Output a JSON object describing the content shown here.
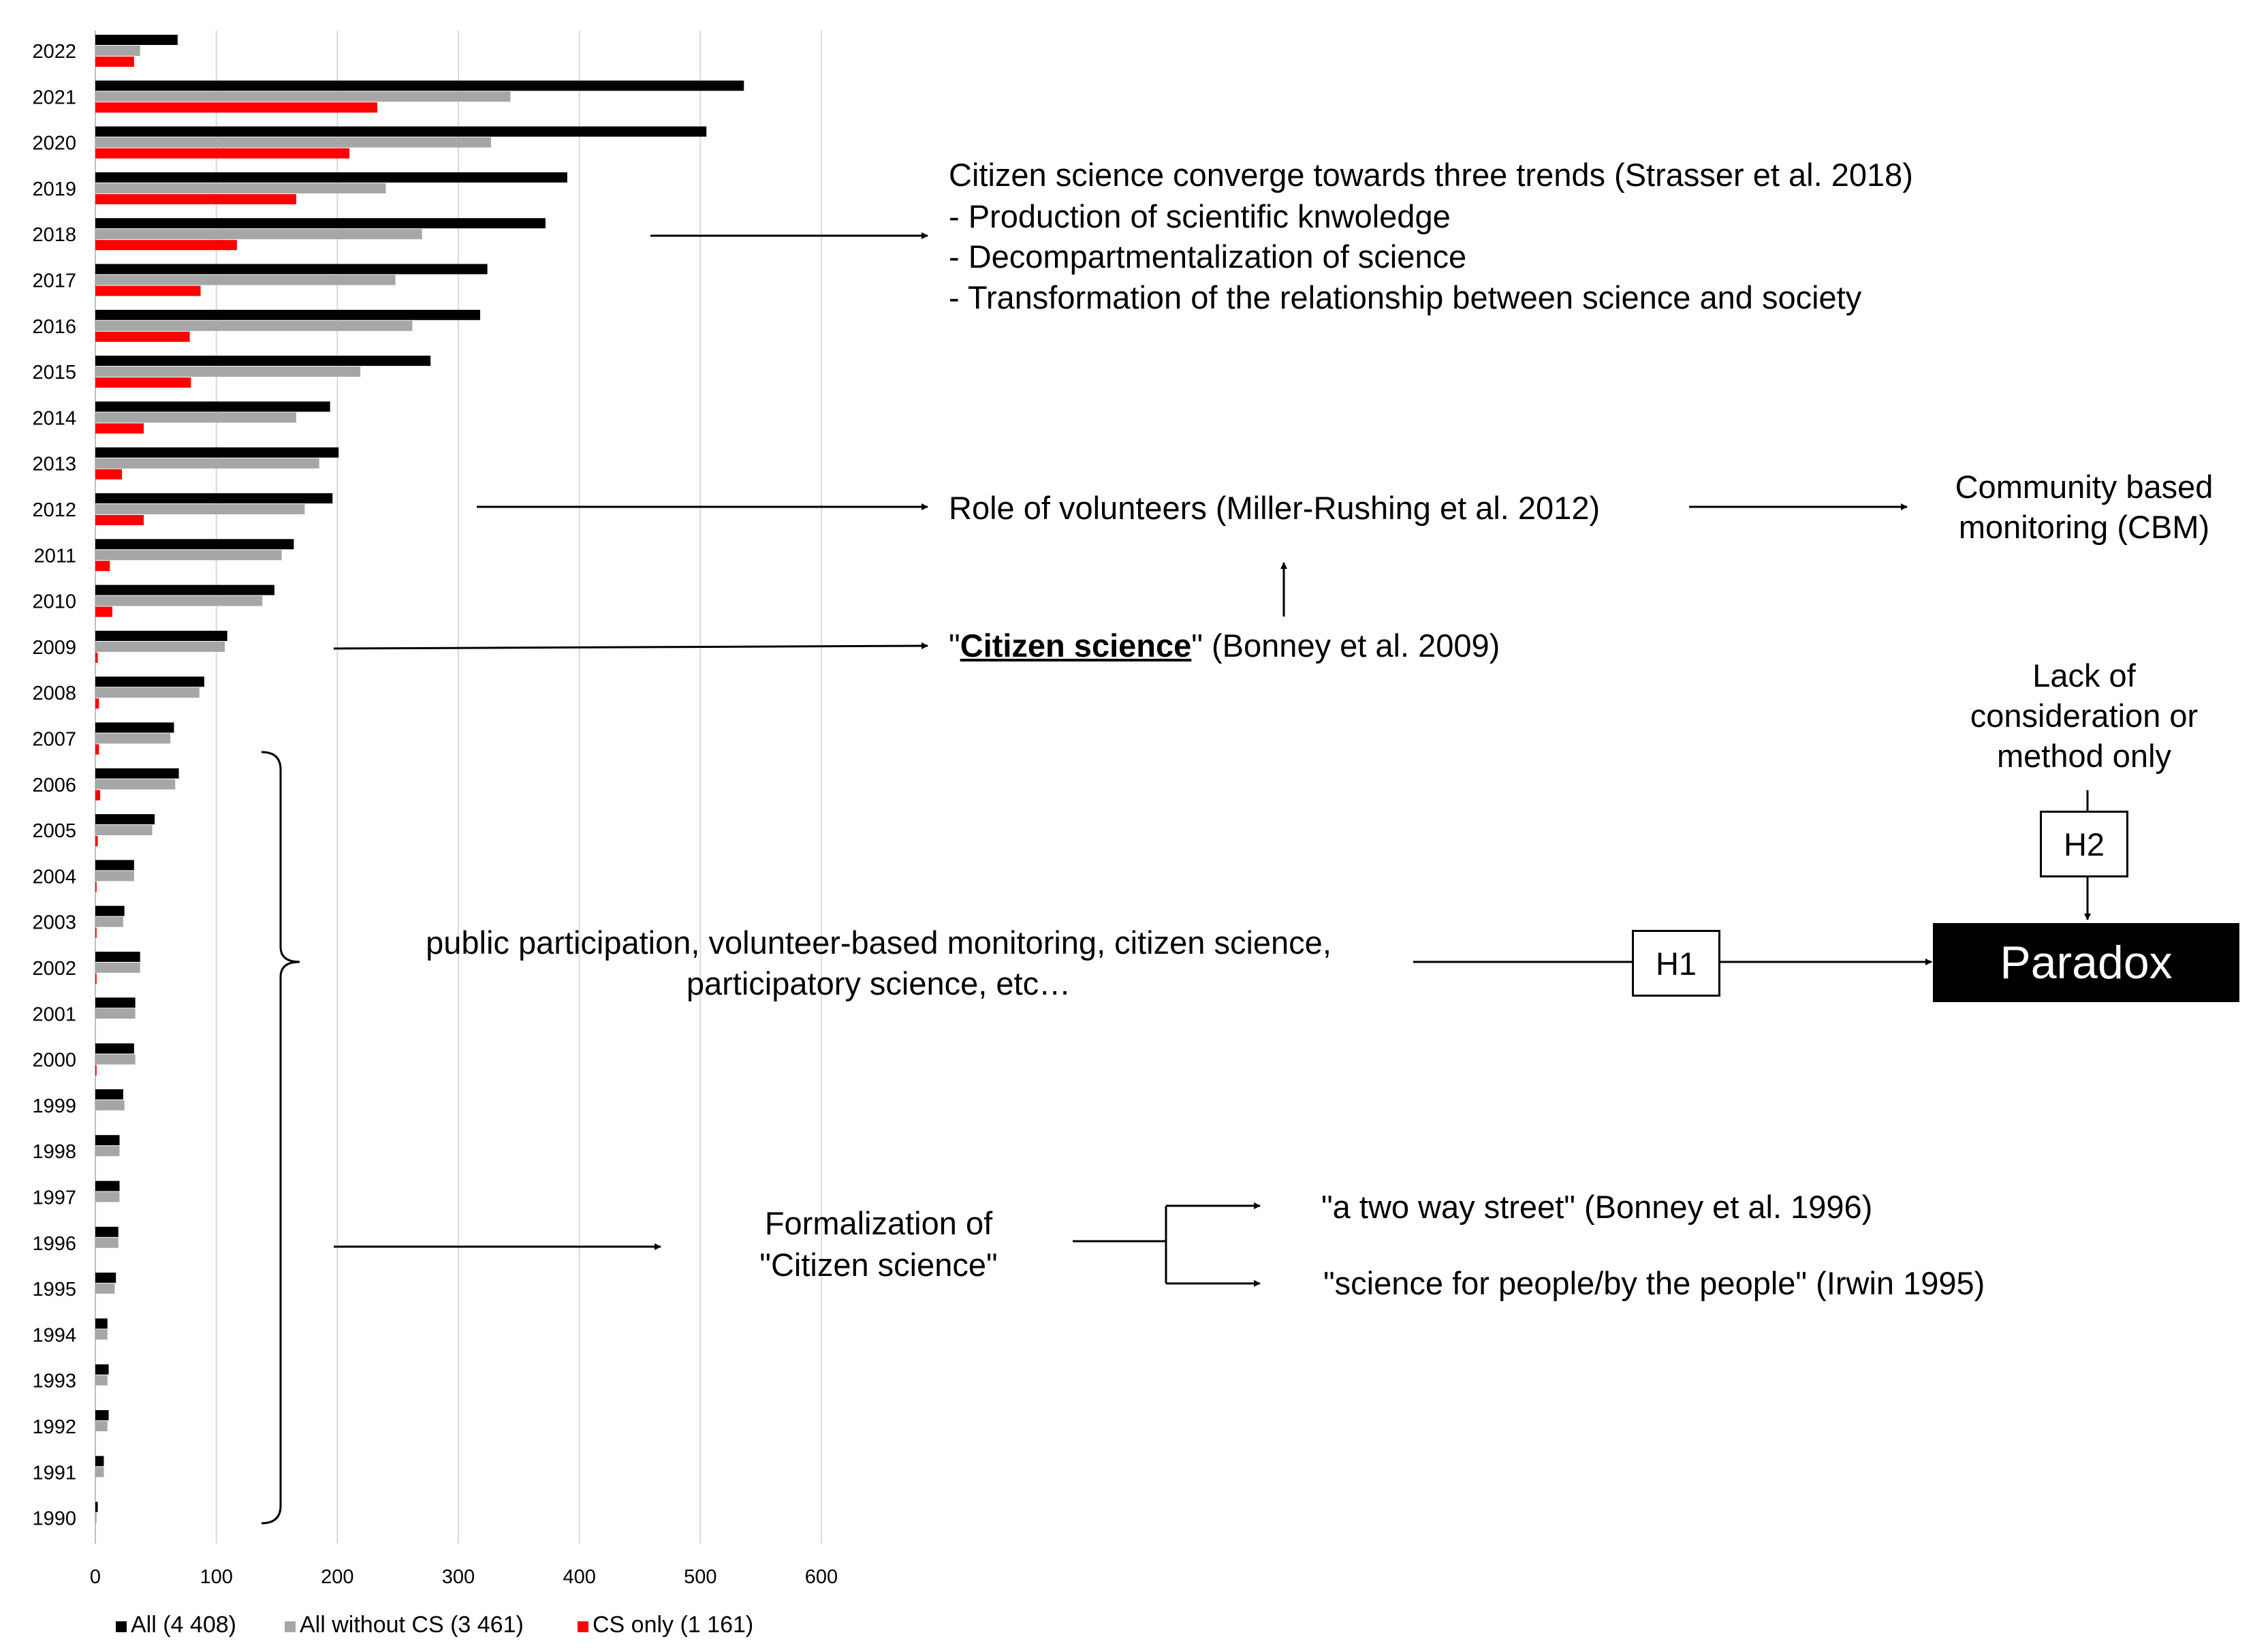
{
  "chart_data": {
    "type": "bar",
    "orientation": "horizontal",
    "categories": [
      "2022",
      "2021",
      "2020",
      "2019",
      "2018",
      "2017",
      "2016",
      "2015",
      "2014",
      "2013",
      "2012",
      "2011",
      "2010",
      "2009",
      "2008",
      "2007",
      "2006",
      "2005",
      "2004",
      "2003",
      "2002",
      "2001",
      "2000",
      "1999",
      "1998",
      "1997",
      "1996",
      "1995",
      "1994",
      "1993",
      "1992",
      "1991",
      "1990"
    ],
    "series": [
      {
        "name": "All (4 408)",
        "color": "#000000",
        "values": [
          68,
          536,
          505,
          390,
          372,
          324,
          318,
          277,
          194,
          201,
          196,
          164,
          148,
          109,
          90,
          65,
          69,
          49,
          32,
          24,
          37,
          33,
          32,
          23,
          20,
          20,
          19,
          17,
          10,
          11,
          11,
          7,
          2
        ]
      },
      {
        "name": "All without CS (3 461)",
        "color": "#a6a6a6",
        "values": [
          37,
          343,
          327,
          240,
          270,
          248,
          262,
          219,
          166,
          185,
          173,
          154,
          138,
          107,
          86,
          62,
          66,
          47,
          32,
          23,
          37,
          33,
          33,
          24,
          20,
          20,
          19,
          16,
          10,
          10,
          10,
          7,
          1
        ]
      },
      {
        "name": "CS only (1 161)",
        "color": "#ff0000",
        "values": [
          32,
          233,
          210,
          166,
          117,
          87,
          78,
          79,
          40,
          22,
          40,
          12,
          14,
          2,
          3,
          3,
          4,
          2,
          1,
          1,
          1,
          0,
          1,
          0,
          0,
          0,
          0,
          0,
          0,
          0,
          0,
          0,
          0
        ]
      }
    ],
    "xticks": [
      "0",
      "100",
      "200",
      "300",
      "400",
      "500",
      "600"
    ],
    "xlim": [
      0,
      600
    ],
    "legend_position": "bottom-left",
    "grid": true
  },
  "annotations": {
    "trends_title": "Citizen science converge towards three trends (Strasser et al. 2018)",
    "trend_items": [
      "-   Production of scientific knwoledge",
      "-   Decompartmentalization of science",
      "-   Transformation of the relationship between science and society"
    ],
    "role_volunteers": "Role of volunteers (Miller-Rushing et al. 2012)",
    "cbm_line1": "Community based",
    "cbm_line2": "monitoring (CBM)",
    "cs_term_open": "\"",
    "cs_term_bold": "Citizen science",
    "cs_term_close": "\" (Bonney et al. 2009)",
    "lack_line1": "Lack of",
    "lack_line2": "consideration or",
    "lack_line3": "method only",
    "h2": "H2",
    "h1": "H1",
    "paradox": "Paradox",
    "public_line1": "public participation, volunteer-based monitoring, citizen science,",
    "public_line2": "participatory science, etc…",
    "formal_line1": "Formalization of",
    "formal_line2": "\"Citizen science\"",
    "two_way": "\"a two way street\"  (Bonney et al. 1996)",
    "people": "\"science for people/by the people\" (Irwin 1995)"
  }
}
